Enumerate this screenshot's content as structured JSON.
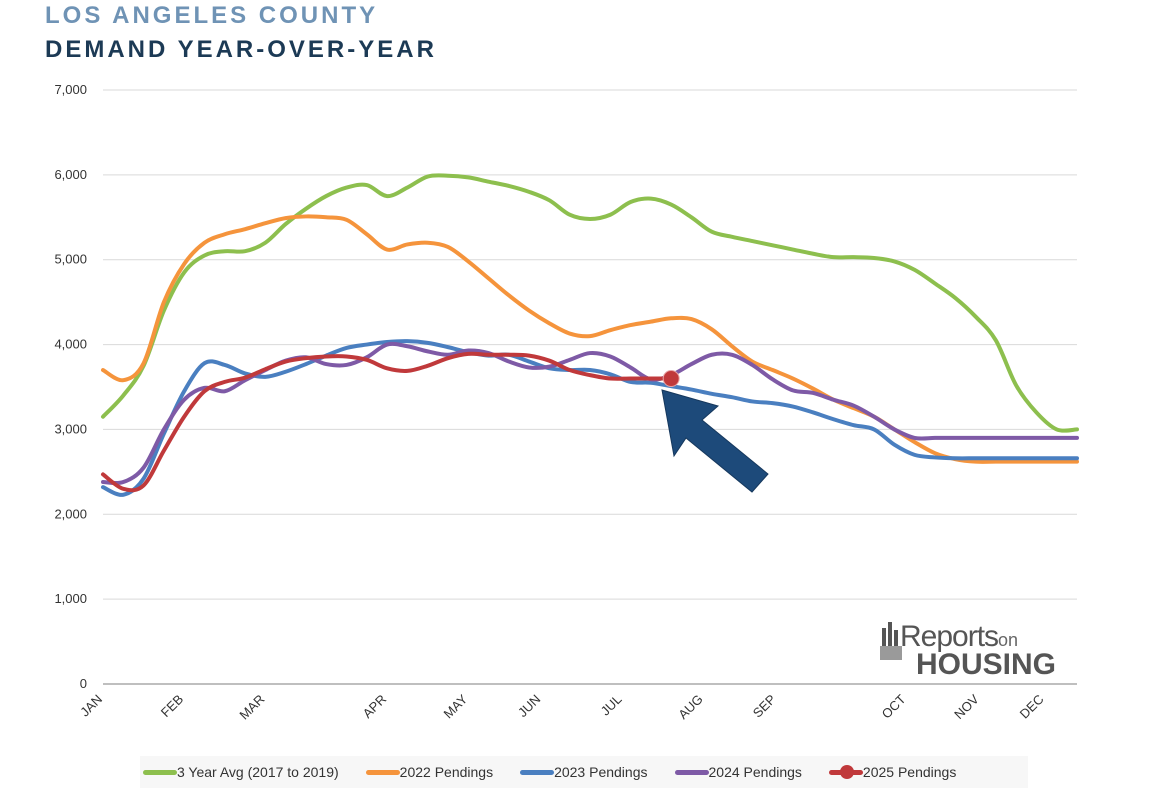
{
  "header": {
    "title": "LOS ANGELES COUNTY",
    "subtitle": "DEMAND YEAR-OVER-YEAR"
  },
  "logo": {
    "line1": "Reports",
    "line1_suffix": "on",
    "line2": "HOUSING"
  },
  "chart_data": {
    "type": "line",
    "title": "LOS ANGELES COUNTY DEMAND YEAR-OVER-YEAR",
    "xlabel": "",
    "ylabel": "",
    "ylim": [
      0,
      7000
    ],
    "yticks": [
      0,
      1000,
      2000,
      3000,
      4000,
      5000,
      6000,
      7000
    ],
    "ytick_labels": [
      "0",
      "1,000",
      "2,000",
      "3,000",
      "4,000",
      "5,000",
      "6,000",
      "7,000"
    ],
    "grid": "horizontal",
    "legend_position": "bottom",
    "x_unit": "months since Jan 1",
    "xlim": [
      0,
      12
    ],
    "months": [
      {
        "label": "JAN",
        "x": 0
      },
      {
        "label": "FEB",
        "x": 1
      },
      {
        "label": "MAR",
        "x": 2
      },
      {
        "label": "APR",
        "x": 3.5
      },
      {
        "label": "MAY",
        "x": 4.5
      },
      {
        "label": "JUN",
        "x": 5.4
      },
      {
        "label": "JUL",
        "x": 6.4
      },
      {
        "label": "AUG",
        "x": 7.4
      },
      {
        "label": "SEP",
        "x": 8.3
      },
      {
        "label": "OCT",
        "x": 9.9
      },
      {
        "label": "NOV",
        "x": 10.8
      },
      {
        "label": "DEC",
        "x": 11.6
      }
    ],
    "series": [
      {
        "name": "3 Year Avg (2017 to 2019)",
        "color": "#8dbf4e",
        "x": [
          0,
          0.25,
          0.5,
          0.75,
          1,
          1.25,
          1.5,
          1.75,
          2,
          2.25,
          2.5,
          2.75,
          3,
          3.25,
          3.5,
          3.75,
          4,
          4.25,
          4.5,
          4.75,
          5,
          5.25,
          5.5,
          5.75,
          6,
          6.25,
          6.5,
          6.75,
          7,
          7.25,
          7.5,
          7.75,
          8,
          8.25,
          8.5,
          8.75,
          9,
          9.25,
          9.5,
          9.75,
          10,
          10.25,
          10.5,
          10.75,
          11,
          11.25,
          11.5,
          11.75,
          12
        ],
        "values": [
          3150,
          3400,
          3750,
          4400,
          4850,
          5050,
          5100,
          5100,
          5200,
          5420,
          5600,
          5750,
          5850,
          5880,
          5750,
          5850,
          5980,
          5990,
          5970,
          5920,
          5870,
          5800,
          5700,
          5530,
          5480,
          5530,
          5680,
          5720,
          5650,
          5500,
          5330,
          5270,
          5220,
          5170,
          5120,
          5070,
          5030,
          5030,
          5020,
          4980,
          4880,
          4720,
          4550,
          4330,
          4050,
          3520,
          3200,
          3000,
          3000
        ]
      },
      {
        "name": "2022 Pendings",
        "color": "#f5943c",
        "x": [
          0,
          0.25,
          0.5,
          0.75,
          1,
          1.25,
          1.5,
          1.75,
          2,
          2.25,
          2.5,
          2.75,
          3,
          3.25,
          3.5,
          3.75,
          4,
          4.25,
          4.5,
          4.75,
          5,
          5.25,
          5.5,
          5.75,
          6,
          6.25,
          6.5,
          6.75,
          7,
          7.25,
          7.5,
          7.75,
          8,
          8.25,
          8.5,
          8.75,
          9,
          9.25,
          9.5,
          9.75,
          10,
          10.25,
          10.5,
          10.75,
          11,
          11.25,
          11.5,
          11.75,
          12
        ],
        "values": [
          3700,
          3580,
          3780,
          4500,
          4950,
          5200,
          5300,
          5360,
          5430,
          5490,
          5510,
          5500,
          5470,
          5300,
          5120,
          5180,
          5200,
          5150,
          4980,
          4780,
          4580,
          4400,
          4250,
          4130,
          4100,
          4170,
          4230,
          4270,
          4310,
          4300,
          4180,
          3980,
          3800,
          3700,
          3600,
          3480,
          3350,
          3250,
          3150,
          3000,
          2850,
          2720,
          2650,
          2620,
          2620,
          2620,
          2620,
          2620,
          2620
        ]
      },
      {
        "name": "2023 Pendings",
        "color": "#4a7fc0",
        "x": [
          0,
          0.25,
          0.5,
          0.75,
          1,
          1.25,
          1.5,
          1.75,
          2,
          2.25,
          2.5,
          2.75,
          3,
          3.25,
          3.5,
          3.75,
          4,
          4.25,
          4.5,
          4.75,
          5,
          5.25,
          5.5,
          5.75,
          6,
          6.25,
          6.5,
          6.75,
          7,
          7.25,
          7.5,
          7.75,
          8,
          8.25,
          8.5,
          8.75,
          9,
          9.25,
          9.5,
          9.75,
          10,
          10.25,
          10.5,
          10.75,
          11,
          11.25,
          11.5,
          11.75,
          12
        ],
        "values": [
          2320,
          2230,
          2420,
          2950,
          3450,
          3780,
          3760,
          3660,
          3620,
          3680,
          3770,
          3870,
          3960,
          4000,
          4030,
          4040,
          4020,
          3970,
          3910,
          3870,
          3880,
          3800,
          3720,
          3700,
          3700,
          3650,
          3560,
          3550,
          3510,
          3470,
          3420,
          3380,
          3330,
          3310,
          3270,
          3200,
          3120,
          3050,
          3000,
          2820,
          2700,
          2670,
          2660,
          2660,
          2660,
          2660,
          2660,
          2660,
          2660
        ]
      },
      {
        "name": "2024 Pendings",
        "color": "#7e5aa6",
        "x": [
          0,
          0.25,
          0.5,
          0.75,
          1,
          1.25,
          1.5,
          1.75,
          2,
          2.25,
          2.5,
          2.75,
          3,
          3.25,
          3.5,
          3.75,
          4,
          4.25,
          4.5,
          4.75,
          5,
          5.25,
          5.5,
          5.75,
          6,
          6.25,
          6.5,
          6.75,
          7,
          7.25,
          7.5,
          7.75,
          8,
          8.25,
          8.5,
          8.75,
          9,
          9.25,
          9.5,
          9.75,
          10,
          10.25,
          10.5,
          10.75,
          11,
          11.25,
          11.5,
          11.75,
          12
        ],
        "values": [
          2380,
          2380,
          2550,
          3000,
          3350,
          3490,
          3450,
          3580,
          3700,
          3810,
          3850,
          3770,
          3760,
          3850,
          4000,
          3980,
          3920,
          3880,
          3930,
          3900,
          3800,
          3730,
          3740,
          3820,
          3900,
          3860,
          3730,
          3590,
          3640,
          3770,
          3880,
          3880,
          3760,
          3590,
          3460,
          3430,
          3350,
          3280,
          3150,
          3000,
          2900,
          2900,
          2900,
          2900,
          2900,
          2900,
          2900,
          2900,
          2900
        ]
      },
      {
        "name": "2025 Pendings",
        "color": "#c0393b",
        "marker_last": true,
        "x": [
          0,
          0.25,
          0.5,
          0.75,
          1,
          1.25,
          1.5,
          1.75,
          2,
          2.25,
          2.5,
          2.75,
          3,
          3.25,
          3.5,
          3.75,
          4,
          4.25,
          4.5,
          4.75,
          5,
          5.25,
          5.5,
          5.75,
          6,
          6.25,
          6.5,
          6.75,
          7
        ],
        "values": [
          2470,
          2300,
          2340,
          2750,
          3150,
          3450,
          3560,
          3610,
          3710,
          3800,
          3840,
          3860,
          3860,
          3820,
          3720,
          3690,
          3750,
          3840,
          3890,
          3880,
          3880,
          3870,
          3810,
          3700,
          3640,
          3600,
          3600,
          3600,
          3600
        ]
      }
    ]
  }
}
